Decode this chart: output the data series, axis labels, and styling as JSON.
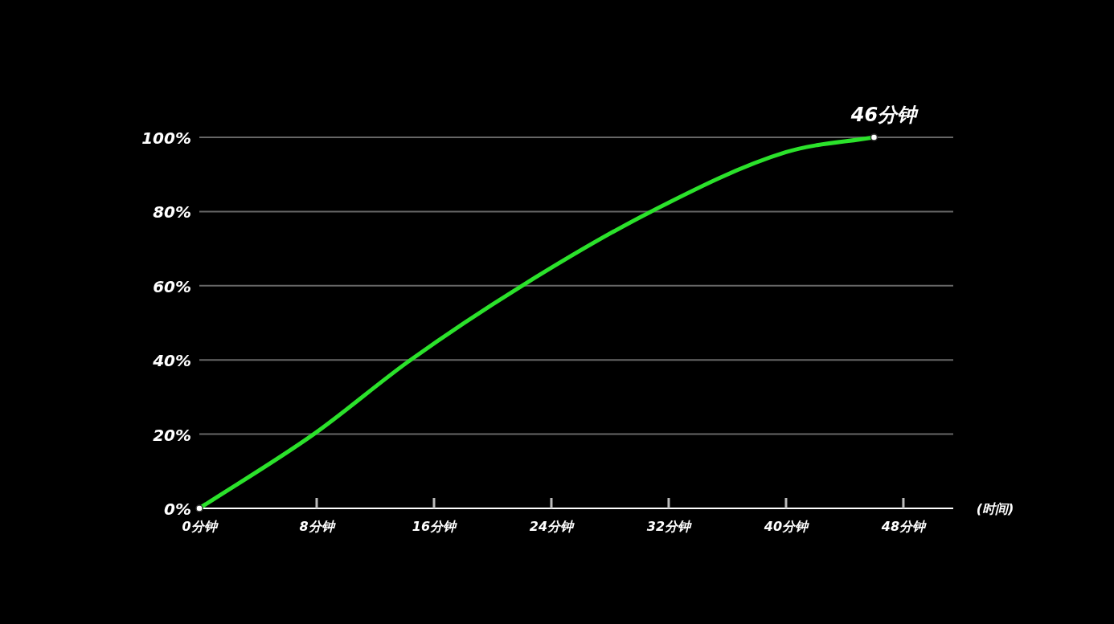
{
  "chart_data": {
    "type": "line",
    "xlabel": "(时间)",
    "x": [
      0,
      7.8,
      14.4,
      22,
      30.8,
      40,
      46
    ],
    "series": [
      {
        "color": "#2be22b",
        "values": [
          0,
          20,
          40,
          60,
          80,
          96,
          100
        ]
      },
      {
        "type": "scatter",
        "x": [
          0,
          46
        ],
        "color": "#ffffff",
        "values": [
          0,
          100
        ],
        "marker": "circle"
      }
    ],
    "xlim": [
      0,
      51.4
    ],
    "ylim": [
      0,
      100
    ],
    "xticks": [
      {
        "value": 0,
        "label": "0分钟"
      },
      {
        "value": 8,
        "label": "8分钟"
      },
      {
        "value": 16,
        "label": "16分钟"
      },
      {
        "value": 24,
        "label": "24分钟"
      },
      {
        "value": 32,
        "label": "32分钟"
      },
      {
        "value": 40,
        "label": "40分钟"
      },
      {
        "value": 48,
        "label": "48分钟"
      }
    ],
    "yticks": [
      {
        "value": 0,
        "label": "0%"
      },
      {
        "value": 20,
        "label": "20%"
      },
      {
        "value": 40,
        "label": "40%"
      },
      {
        "value": 60,
        "label": "60%"
      },
      {
        "value": 80,
        "label": "80%"
      },
      {
        "value": 100,
        "label": "100%"
      }
    ],
    "grid": "y",
    "annotations": [
      {
        "text": "46分钟",
        "x": 46,
        "y": 100
      }
    ]
  }
}
